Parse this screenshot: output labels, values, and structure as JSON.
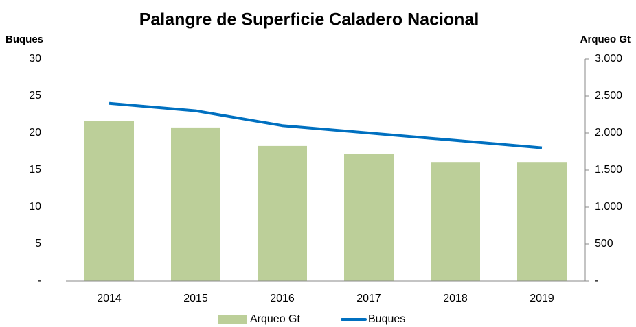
{
  "chart_data": {
    "type": "bar-line",
    "title": "Palangre de Superficie Caladero Nacional",
    "ylabel": "Buques",
    "y2label": "Arqueo Gt",
    "categories": [
      "2014",
      "2015",
      "2016",
      "2017",
      "2018",
      "2019"
    ],
    "series": [
      {
        "name": "Arqueo Gt",
        "type": "bar",
        "axis": "y2",
        "color": "#bccf99",
        "values": [
          2160,
          2075,
          1825,
          1715,
          1600,
          1600
        ]
      },
      {
        "name": "Buques",
        "type": "line",
        "axis": "y",
        "color": "#0070c0",
        "values": [
          24,
          23,
          21,
          20,
          19,
          18
        ]
      }
    ],
    "ylim": [
      0,
      30
    ],
    "yticks": [
      {
        "value": 0,
        "label": "-"
      },
      5,
      10,
      15,
      20,
      25,
      30
    ],
    "y2lim": [
      0,
      3000
    ],
    "y2ticks": [
      {
        "value": 0,
        "label": "-"
      },
      500,
      {
        "value": 1000,
        "label": "1.000"
      },
      {
        "value": 1500,
        "label": "1.500"
      },
      {
        "value": 2000,
        "label": "2.000"
      },
      {
        "value": 2500,
        "label": "2.500"
      },
      {
        "value": 3000,
        "label": "3.000"
      }
    ],
    "legend": "bottom"
  }
}
